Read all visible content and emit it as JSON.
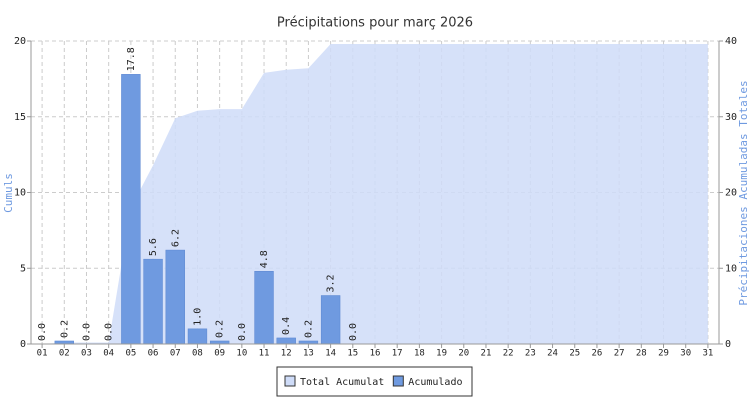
{
  "chart_data": {
    "type": "bar",
    "title": "Précipitations pour març 2026",
    "ylabel": "Cumuls",
    "y2label": "Précipitaciones Acumuladas Totales",
    "categories": [
      "01",
      "02",
      "03",
      "04",
      "05",
      "06",
      "07",
      "08",
      "09",
      "10",
      "11",
      "12",
      "13",
      "14",
      "15",
      "16",
      "17",
      "18",
      "19",
      "20",
      "21",
      "22",
      "23",
      "24",
      "25",
      "26",
      "27",
      "28",
      "29",
      "30",
      "31"
    ],
    "ylim": [
      0,
      20
    ],
    "yticks": [
      0,
      5,
      10,
      15,
      20
    ],
    "y2lim": [
      0,
      40
    ],
    "y2ticks": [
      0,
      10,
      20,
      30,
      40
    ],
    "grid": true,
    "legend": "bottom",
    "series": [
      {
        "name": "Total Acumulat",
        "type": "area",
        "axis": "y2",
        "color": "#cfdcf8",
        "values": [
          0,
          0.2,
          0.2,
          0.2,
          18,
          23.6,
          29.8,
          30.8,
          31,
          31,
          35.8,
          36.2,
          36.4,
          39.6,
          39.6,
          39.6,
          39.6,
          39.6,
          39.6,
          39.6,
          39.6,
          39.6,
          39.6,
          39.6,
          39.6,
          39.6,
          39.6,
          39.6,
          39.6,
          39.6,
          39.6
        ]
      },
      {
        "name": "Acumulado",
        "type": "bar",
        "color": "#6f9ae0",
        "values": [
          0,
          0.2,
          0,
          0,
          17.8,
          5.6,
          6.2,
          1,
          0.2,
          0,
          4.8,
          0.4,
          0.2,
          3.2,
          0,
          null,
          null,
          null,
          null,
          null,
          null,
          null,
          null,
          null,
          null,
          null,
          null,
          null,
          null,
          null,
          null
        ],
        "value_labels": [
          "0.0",
          "0.2",
          "0.0",
          "0.0",
          "17.8",
          "5.6",
          "6.2",
          "1.0",
          "0.2",
          "0.0",
          "4.8",
          "0.4",
          "0.2",
          "3.2",
          "0.0",
          null,
          null,
          null,
          null,
          null,
          null,
          null,
          null,
          null,
          null,
          null,
          null,
          null,
          null,
          null,
          null
        ]
      }
    ]
  }
}
